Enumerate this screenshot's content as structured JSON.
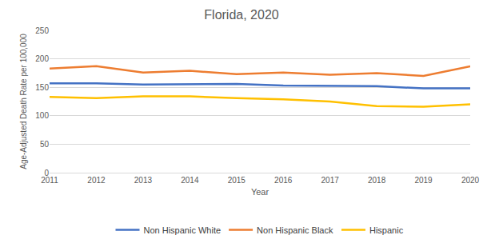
{
  "chart_data": {
    "type": "line",
    "title": "Florida, 2020",
    "x_label": "Year",
    "y_label": "Age-Adjusted Death Rate per 100,000",
    "categories": [
      "2011",
      "2012",
      "2013",
      "2014",
      "2015",
      "2016",
      "2017",
      "2018",
      "2019",
      "2020"
    ],
    "series": [
      {
        "name": "Non Hispanic White",
        "color": "#4472c4",
        "values": [
          157,
          157,
          155,
          155,
          156,
          153,
          152,
          152,
          148,
          148
        ]
      },
      {
        "name": "Non Hispanic Black",
        "color": "#ed7d31",
        "values": [
          183,
          187,
          176,
          179,
          173,
          176,
          172,
          175,
          170,
          187
        ]
      },
      {
        "name": "Hispanic",
        "color": "#ffc000",
        "values": [
          133,
          131,
          134,
          134,
          131,
          129,
          125,
          117,
          116,
          120
        ]
      }
    ],
    "ylim": [
      0,
      250
    ],
    "yticks": [
      0,
      50,
      100,
      150,
      200,
      250
    ],
    "grid": true,
    "legend": "bottom"
  }
}
